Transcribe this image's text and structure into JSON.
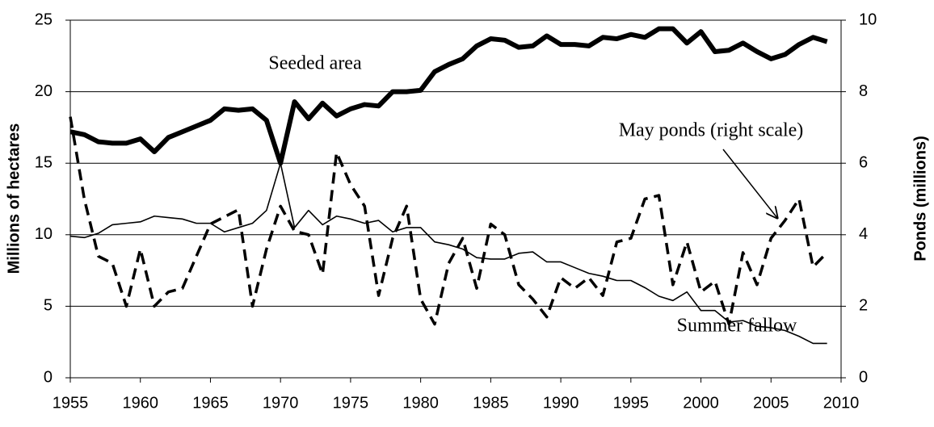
{
  "chart_data": {
    "type": "line",
    "y_label": "Millions of hectares",
    "y2_label": "Ponds (millions)",
    "x": [
      1955,
      1956,
      1957,
      1958,
      1959,
      1960,
      1961,
      1962,
      1963,
      1964,
      1965,
      1966,
      1967,
      1968,
      1969,
      1970,
      1971,
      1972,
      1973,
      1974,
      1975,
      1976,
      1977,
      1978,
      1979,
      1980,
      1981,
      1982,
      1983,
      1984,
      1985,
      1986,
      1987,
      1988,
      1989,
      1990,
      1991,
      1992,
      1993,
      1994,
      1995,
      1996,
      1997,
      1998,
      1999,
      2000,
      2001,
      2002,
      2003,
      2004,
      2005,
      2006,
      2007,
      2008,
      2009
    ],
    "series": [
      {
        "name": "Seeded area",
        "color": "#000000",
        "line_style": "thick",
        "axis": "y",
        "values": [
          17.2,
          17.0,
          16.5,
          16.4,
          16.4,
          16.7,
          15.8,
          16.8,
          17.2,
          17.6,
          18.0,
          18.8,
          18.7,
          18.8,
          18.0,
          15.0,
          19.3,
          18.1,
          19.2,
          18.3,
          18.8,
          19.1,
          19.0,
          20.0,
          20.0,
          20.1,
          21.4,
          21.9,
          22.3,
          23.2,
          23.7,
          23.6,
          23.1,
          23.2,
          23.9,
          23.3,
          23.3,
          23.2,
          23.8,
          23.7,
          24.0,
          23.8,
          24.4,
          24.4,
          23.4,
          24.2,
          22.8,
          22.9,
          23.4,
          22.8,
          22.3,
          22.6,
          23.3,
          23.8,
          23.5
        ]
      },
      {
        "name": "May ponds (right scale)",
        "color": "#000000",
        "line_style": "dashed",
        "axis": "y2",
        "values": [
          7.3,
          5.0,
          3.4,
          3.2,
          2.0,
          3.6,
          2.0,
          2.4,
          2.5,
          3.4,
          4.3,
          4.5,
          4.7,
          2.0,
          3.6,
          4.8,
          4.1,
          4.0,
          2.9,
          6.3,
          5.4,
          4.8,
          2.3,
          3.9,
          4.8,
          2.2,
          1.5,
          3.2,
          3.9,
          2.5,
          4.3,
          4.0,
          2.6,
          2.2,
          1.7,
          2.8,
          2.5,
          2.8,
          2.3,
          3.8,
          3.9,
          5.0,
          5.1,
          2.6,
          3.8,
          2.4,
          2.7,
          1.5,
          3.5,
          2.6,
          3.9,
          4.4,
          5.0,
          3.1,
          3.5
        ]
      },
      {
        "name": "Summer fallow",
        "color": "#000000",
        "line_style": "thin",
        "axis": "y",
        "values": [
          9.9,
          9.8,
          10.1,
          10.7,
          10.8,
          10.9,
          11.3,
          11.2,
          11.1,
          10.8,
          10.8,
          10.2,
          10.5,
          10.8,
          11.7,
          15.0,
          10.5,
          11.7,
          10.7,
          11.3,
          11.1,
          10.8,
          11.0,
          10.2,
          10.5,
          10.5,
          9.5,
          9.3,
          9.0,
          8.4,
          8.3,
          8.3,
          8.7,
          8.8,
          8.1,
          8.1,
          7.7,
          7.3,
          7.1,
          6.8,
          6.8,
          6.3,
          5.7,
          5.4,
          6.0,
          4.7,
          4.7,
          3.9,
          4.0,
          3.6,
          3.5,
          3.3,
          2.9,
          2.4,
          2.4
        ]
      }
    ],
    "xlim": [
      1955,
      2010
    ],
    "xticks": [
      1955,
      1960,
      1965,
      1970,
      1975,
      1980,
      1985,
      1990,
      1995,
      2000,
      2005,
      2010
    ],
    "ylim": [
      0,
      25
    ],
    "yticks": [
      0,
      5,
      10,
      15,
      20,
      25
    ],
    "y2lim": [
      0,
      10
    ],
    "y2ticks": [
      0,
      2,
      4,
      6,
      8,
      10
    ],
    "grid": true
  }
}
